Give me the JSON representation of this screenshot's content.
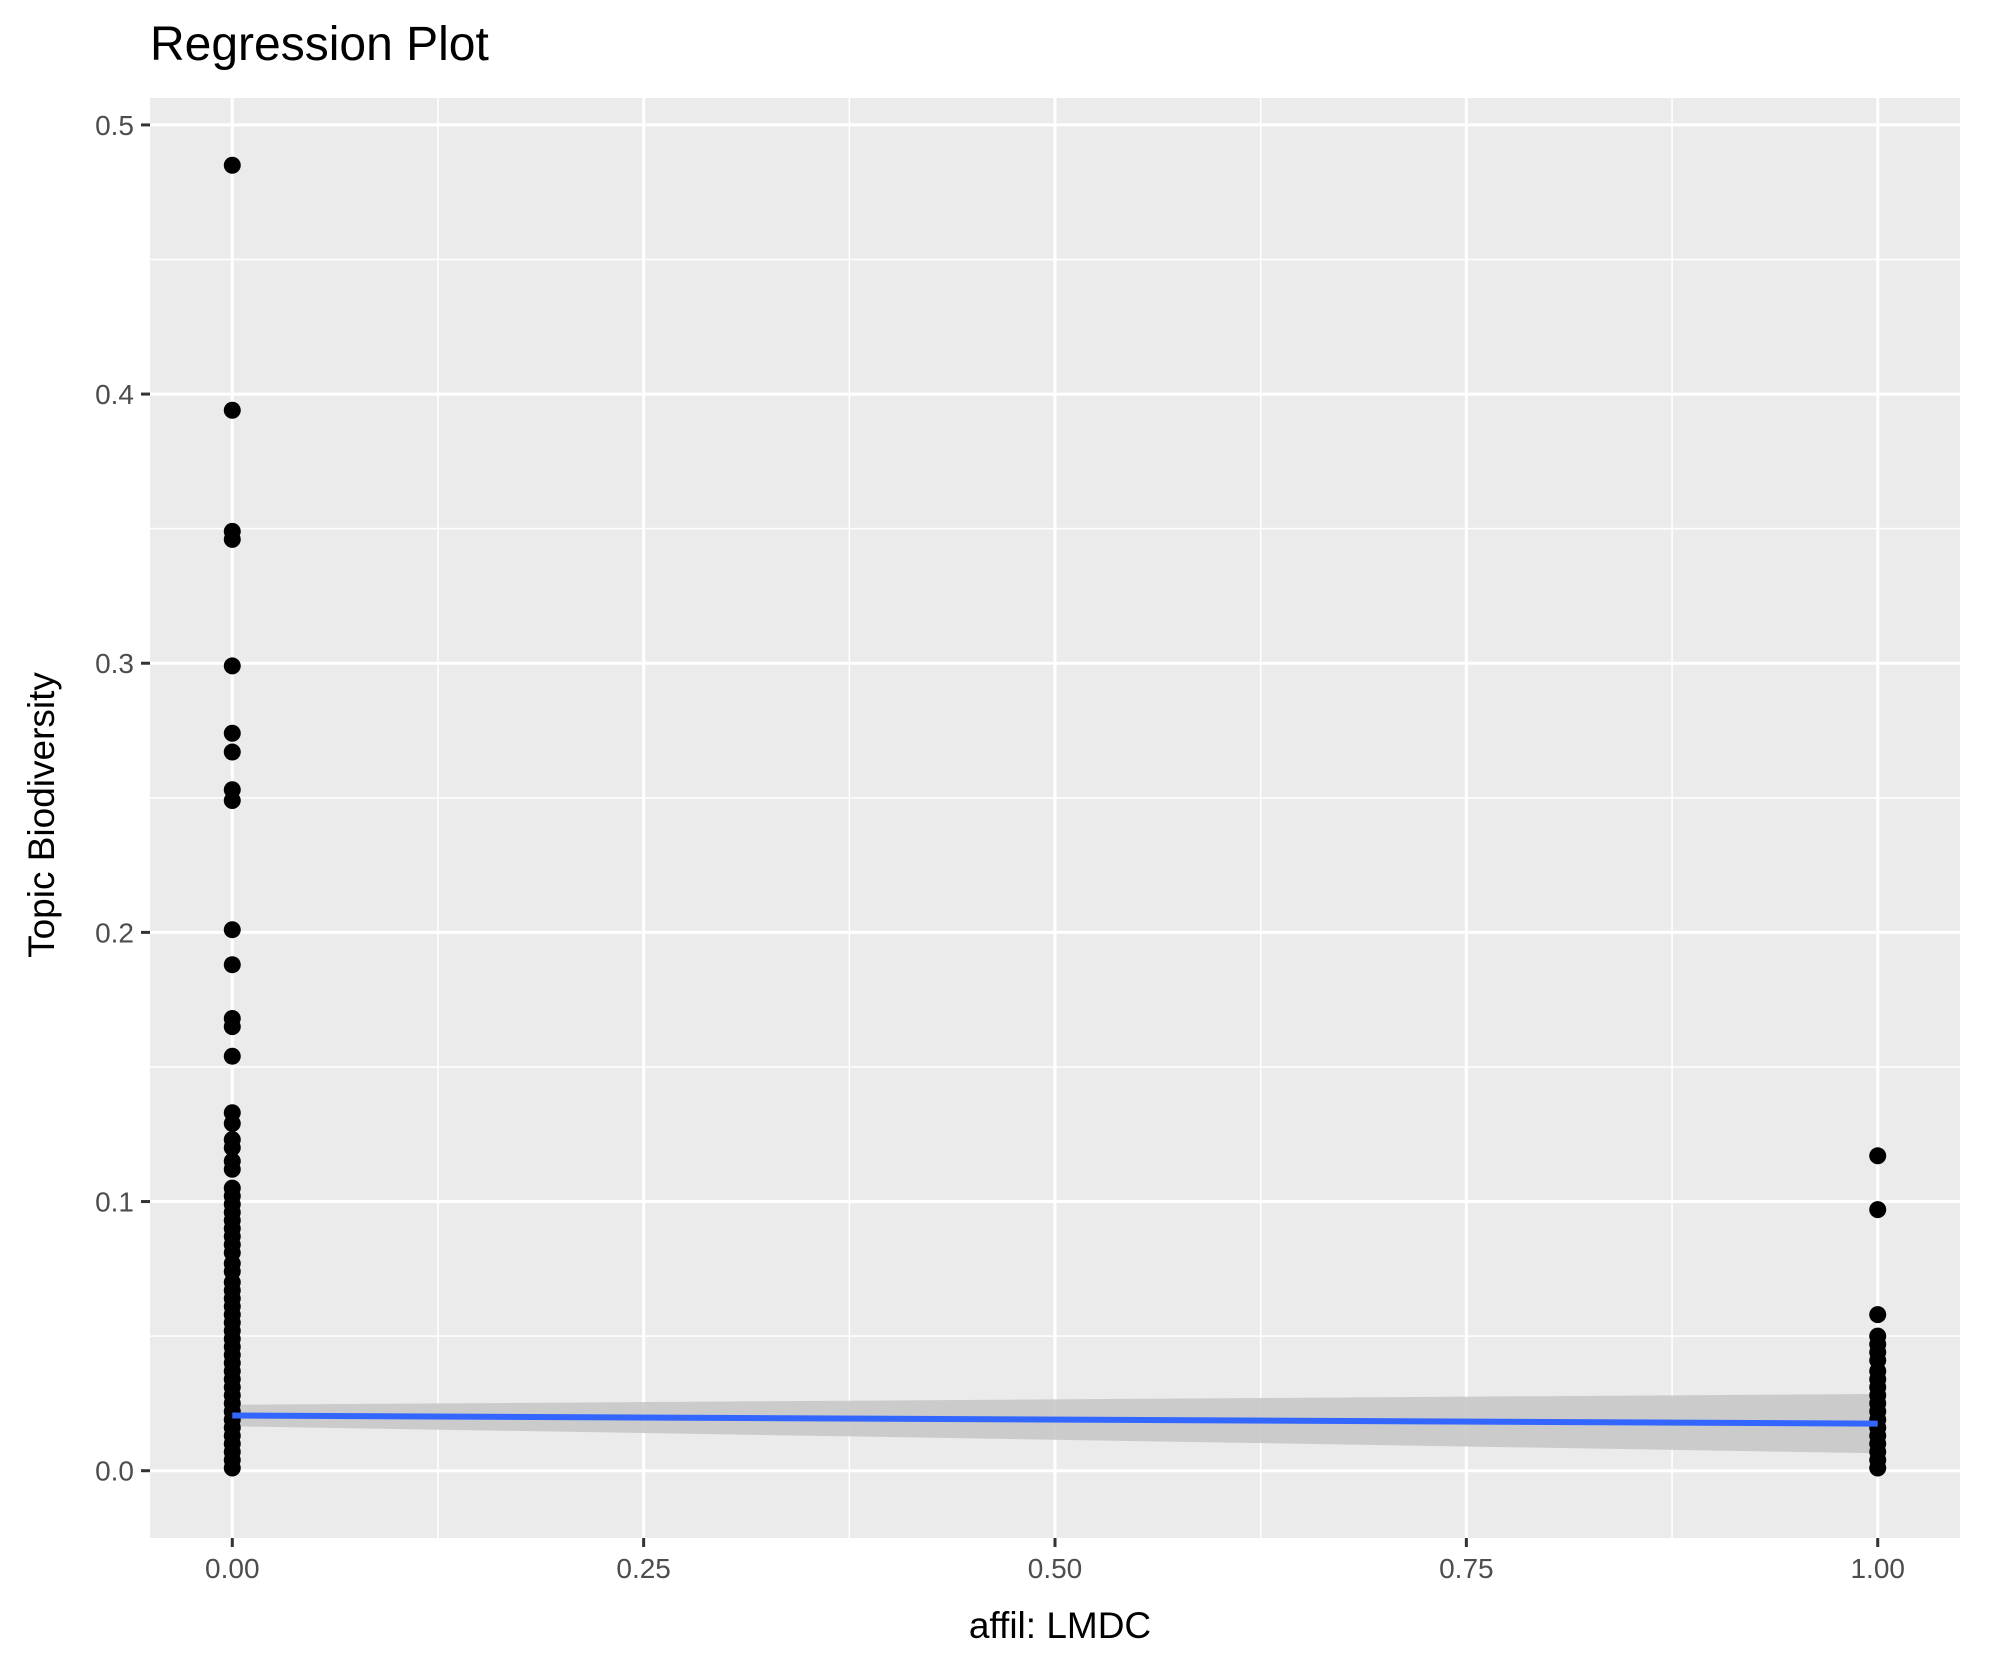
{
  "chart_data": {
    "type": "scatter",
    "title": "Regression Plot",
    "xlabel": "affil: LMDC",
    "ylabel": "Topic Biodiversity",
    "xlim": [
      -0.05,
      1.05
    ],
    "ylim": [
      -0.025,
      0.51
    ],
    "x_ticks": [
      {
        "value": 0.0,
        "label": "0.00"
      },
      {
        "value": 0.25,
        "label": "0.25"
      },
      {
        "value": 0.5,
        "label": "0.50"
      },
      {
        "value": 0.75,
        "label": "0.75"
      },
      {
        "value": 1.0,
        "label": "1.00"
      }
    ],
    "y_ticks": [
      {
        "value": 0.0,
        "label": "0.0"
      },
      {
        "value": 0.1,
        "label": "0.1"
      },
      {
        "value": 0.2,
        "label": "0.2"
      },
      {
        "value": 0.3,
        "label": "0.3"
      },
      {
        "value": 0.4,
        "label": "0.4"
      },
      {
        "value": 0.5,
        "label": "0.5"
      }
    ],
    "grid": true,
    "legend": "none",
    "points": [
      {
        "x": 0,
        "y": 0.485
      },
      {
        "x": 0,
        "y": 0.394
      },
      {
        "x": 0,
        "y": 0.349
      },
      {
        "x": 0,
        "y": 0.346
      },
      {
        "x": 0,
        "y": 0.299
      },
      {
        "x": 0,
        "y": 0.274
      },
      {
        "x": 0,
        "y": 0.267
      },
      {
        "x": 0,
        "y": 0.253
      },
      {
        "x": 0,
        "y": 0.249
      },
      {
        "x": 0,
        "y": 0.201
      },
      {
        "x": 0,
        "y": 0.188
      },
      {
        "x": 0,
        "y": 0.168
      },
      {
        "x": 0,
        "y": 0.165
      },
      {
        "x": 0,
        "y": 0.154
      },
      {
        "x": 0,
        "y": 0.133
      },
      {
        "x": 0,
        "y": 0.129
      },
      {
        "x": 0,
        "y": 0.123
      },
      {
        "x": 0,
        "y": 0.12
      },
      {
        "x": 0,
        "y": 0.115
      },
      {
        "x": 0,
        "y": 0.112
      },
      {
        "x": 0,
        "y": 0.105
      },
      {
        "x": 0,
        "y": 0.102
      },
      {
        "x": 0,
        "y": 0.099
      },
      {
        "x": 0,
        "y": 0.096
      },
      {
        "x": 0,
        "y": 0.093
      },
      {
        "x": 0,
        "y": 0.09
      },
      {
        "x": 0,
        "y": 0.087
      },
      {
        "x": 0,
        "y": 0.084
      },
      {
        "x": 0,
        "y": 0.081
      },
      {
        "x": 0,
        "y": 0.077
      },
      {
        "x": 0,
        "y": 0.074
      },
      {
        "x": 0,
        "y": 0.07
      },
      {
        "x": 0,
        "y": 0.067
      },
      {
        "x": 0,
        "y": 0.064
      },
      {
        "x": 0,
        "y": 0.061
      },
      {
        "x": 0,
        "y": 0.058
      },
      {
        "x": 0,
        "y": 0.055
      },
      {
        "x": 0,
        "y": 0.052
      },
      {
        "x": 0,
        "y": 0.049
      },
      {
        "x": 0,
        "y": 0.046
      },
      {
        "x": 0,
        "y": 0.043
      },
      {
        "x": 0,
        "y": 0.04
      },
      {
        "x": 0,
        "y": 0.037
      },
      {
        "x": 0,
        "y": 0.034
      },
      {
        "x": 0,
        "y": 0.031
      },
      {
        "x": 0,
        "y": 0.028
      },
      {
        "x": 0,
        "y": 0.025
      },
      {
        "x": 0,
        "y": 0.022
      },
      {
        "x": 0,
        "y": 0.019
      },
      {
        "x": 0,
        "y": 0.016
      },
      {
        "x": 0,
        "y": 0.013
      },
      {
        "x": 0,
        "y": 0.01
      },
      {
        "x": 0,
        "y": 0.007
      },
      {
        "x": 0,
        "y": 0.004
      },
      {
        "x": 0,
        "y": 0.001
      },
      {
        "x": 1,
        "y": 0.117
      },
      {
        "x": 1,
        "y": 0.097
      },
      {
        "x": 1,
        "y": 0.058
      },
      {
        "x": 1,
        "y": 0.05
      },
      {
        "x": 1,
        "y": 0.047
      },
      {
        "x": 1,
        "y": 0.044
      },
      {
        "x": 1,
        "y": 0.041
      },
      {
        "x": 1,
        "y": 0.037
      },
      {
        "x": 1,
        "y": 0.034
      },
      {
        "x": 1,
        "y": 0.031
      },
      {
        "x": 1,
        "y": 0.028
      },
      {
        "x": 1,
        "y": 0.025
      },
      {
        "x": 1,
        "y": 0.022
      },
      {
        "x": 1,
        "y": 0.019
      },
      {
        "x": 1,
        "y": 0.016
      },
      {
        "x": 1,
        "y": 0.013
      },
      {
        "x": 1,
        "y": 0.01
      },
      {
        "x": 1,
        "y": 0.007
      },
      {
        "x": 1,
        "y": 0.004
      },
      {
        "x": 1,
        "y": 0.001
      }
    ],
    "regression": {
      "x": [
        0,
        1
      ],
      "y": [
        0.0205,
        0.0175
      ],
      "ci_lower": [
        0.0165,
        0.0065
      ],
      "ci_upper": [
        0.0245,
        0.0285
      ]
    },
    "colors": {
      "panel": "#ebebeb",
      "grid": "#ffffff",
      "point": "#000000",
      "line": "#3366ff",
      "band": "#c8c8c8"
    }
  }
}
